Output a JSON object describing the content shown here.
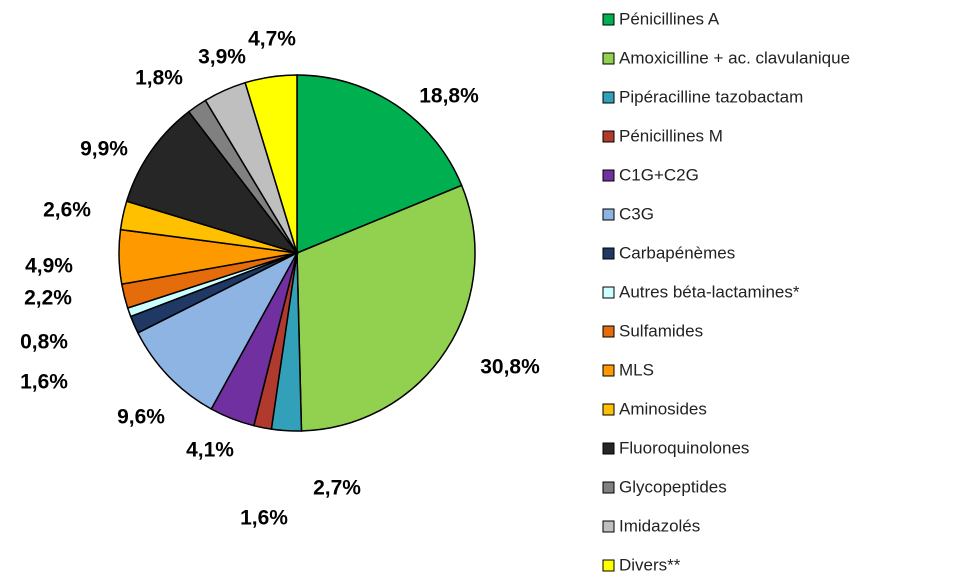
{
  "chart_data": {
    "type": "pie",
    "categories": [
      "Pénicillines A",
      "Amoxicilline + ac. clavulanique",
      "Pipéracilline tazobactam",
      "Pénicillines M",
      "C1G+C2G",
      "C3G",
      "Carbapénèmes",
      "Autres béta-lactamines*",
      "Sulfamides",
      "MLS",
      "Aminosides",
      "Fluoroquinolones",
      "Glycopeptides",
      "Imidazolés",
      "Divers**"
    ],
    "values": [
      18.8,
      30.8,
      2.7,
      1.6,
      4.1,
      9.6,
      1.6,
      0.8,
      2.2,
      4.9,
      2.6,
      9.9,
      1.8,
      3.9,
      4.7
    ],
    "value_labels": [
      "18,8%",
      "30,8%",
      "2,7%",
      "1,6%",
      "4,1%",
      "9,6%",
      "1,6%",
      "0,8%",
      "2,2%",
      "4,9%",
      "2,6%",
      "9,9%",
      "1,8%",
      "3,9%",
      "4,7%"
    ],
    "colors": [
      "#00b050",
      "#92d050",
      "#31a0b8",
      "#b03a2e",
      "#7030a0",
      "#8db4e2",
      "#1f3864",
      "#ccffff",
      "#e46c0a",
      "#ff9900",
      "#ffc000",
      "#262626",
      "#808080",
      "#bfbfbf",
      "#ffff00"
    ]
  }
}
